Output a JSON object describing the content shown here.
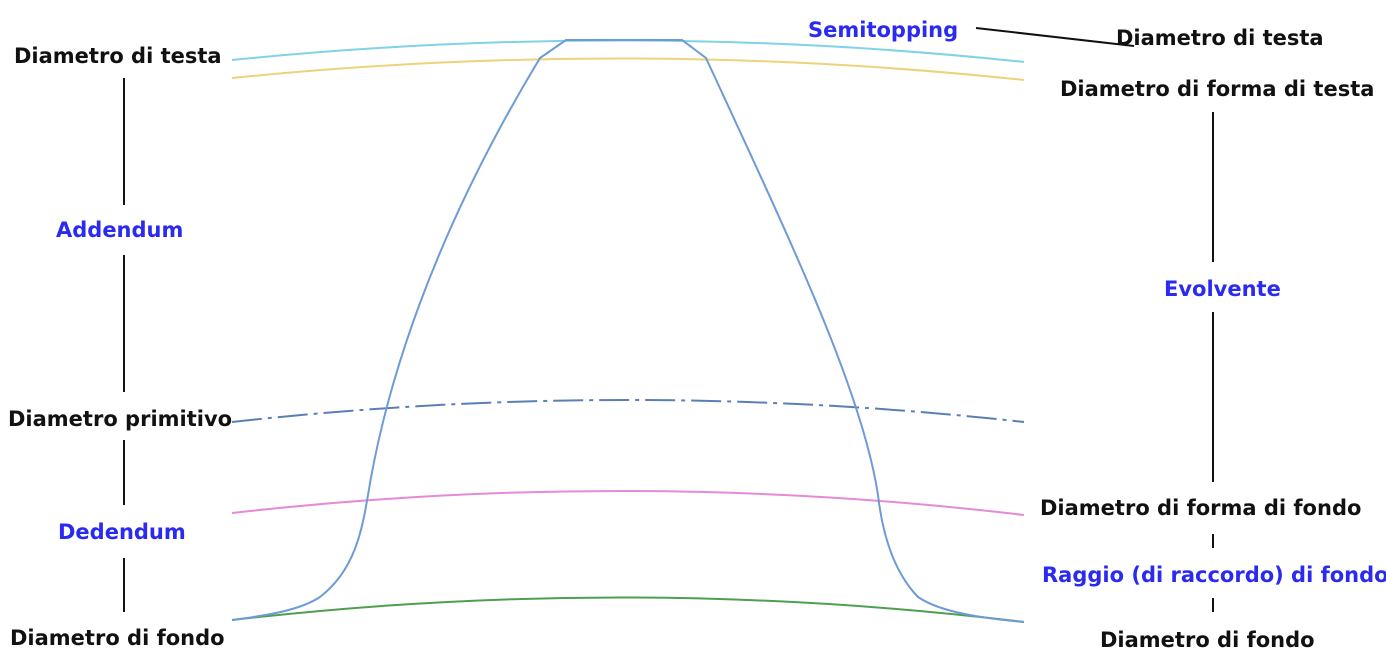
{
  "labels": {
    "left": {
      "tip_diameter": "Diametro di testa",
      "addendum": "Addendum",
      "pitch_diameter": "Diametro primitivo",
      "dedendum": "Dedendum",
      "root_diameter": "Diametro di fondo"
    },
    "right": {
      "semitopping": "Semitopping",
      "tip_diameter": "Diametro di testa",
      "tip_form_diameter": "Diametro di forma di testa",
      "involute": "Evolvente",
      "root_form_diameter": "Diametro di forma di fondo",
      "root_fillet_radius": "Raggio (di raccordo) di fondo",
      "root_diameter": "Diametro di fondo"
    }
  },
  "colors": {
    "text_black": "#111111",
    "text_blue": "#2a2af0",
    "tip_circle": "#7fd3e6",
    "tip_form_circle": "#eed27a",
    "pitch_circle": "#5a7fb5",
    "root_form_circle": "#e48ad8",
    "root_circle": "#4ea04e",
    "tooth_profile": "#6e9ad6",
    "leader_lines": "#111111"
  }
}
